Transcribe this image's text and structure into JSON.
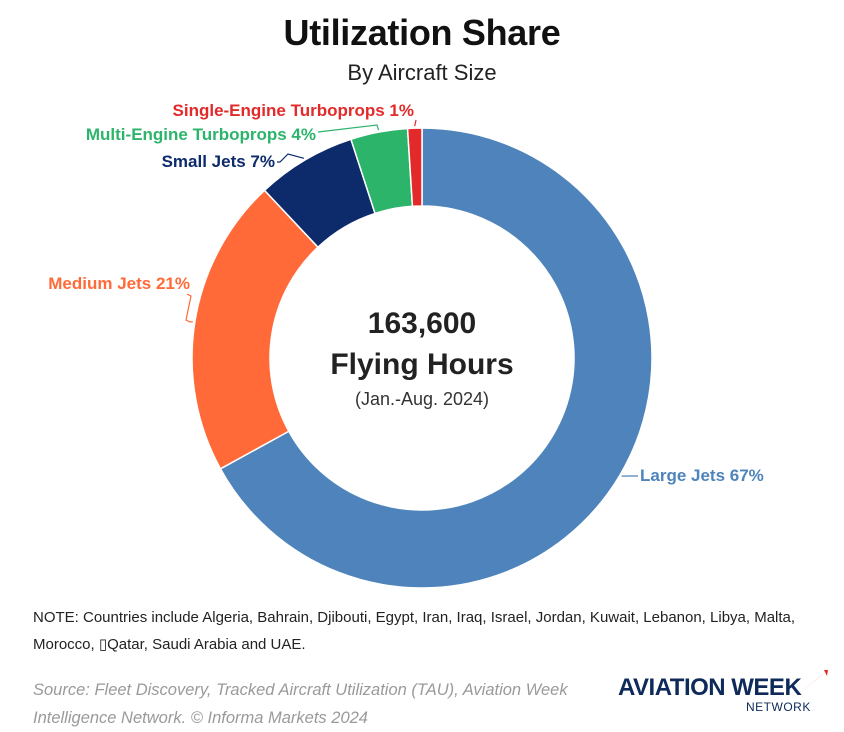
{
  "chart_data": {
    "type": "donut",
    "title": "Utilization Share",
    "subtitle": "By Aircraft Size",
    "slices": [
      {
        "name": "Large Jets",
        "value": 67,
        "label": "Large Jets 67%",
        "color": "#4e84bb"
      },
      {
        "name": "Medium Jets",
        "value": 21,
        "label": "Medium Jets 21%",
        "color": "#ff6a38"
      },
      {
        "name": "Small Jets",
        "value": 7,
        "label": "Small Jets 7%",
        "color": "#0d2b6a"
      },
      {
        "name": "Multi-Engine Turboprops",
        "value": 4,
        "label": "Multi-Engine Turboprops 4%",
        "color": "#2db46b"
      },
      {
        "name": "Single-Engine Turboprops",
        "value": 1,
        "label": "Single-Engine Turboprops 1%",
        "color": "#e32a2a"
      }
    ],
    "center": {
      "value": "163,600",
      "label": "Flying Hours",
      "period": "(Jan.-Aug. 2024)"
    }
  },
  "note": "NOTE: Countries include Algeria, Bahrain, Djibouti, Egypt, Iran, Iraq, Israel, Jordan, Kuwait, Lebanon, Libya, Malta, Morocco, ▯Qatar, Saudi Arabia and UAE.",
  "source": "Source: Fleet Discovery, Tracked Aircraft Utilization (TAU), Aviation Week Intelligence Network. © Informa Markets 2024",
  "logo": {
    "main": "AVIATION WEEK",
    "sub": "NETWORK",
    "accent_color": "#e32a2a",
    "brand_color": "#0e2a5a"
  }
}
